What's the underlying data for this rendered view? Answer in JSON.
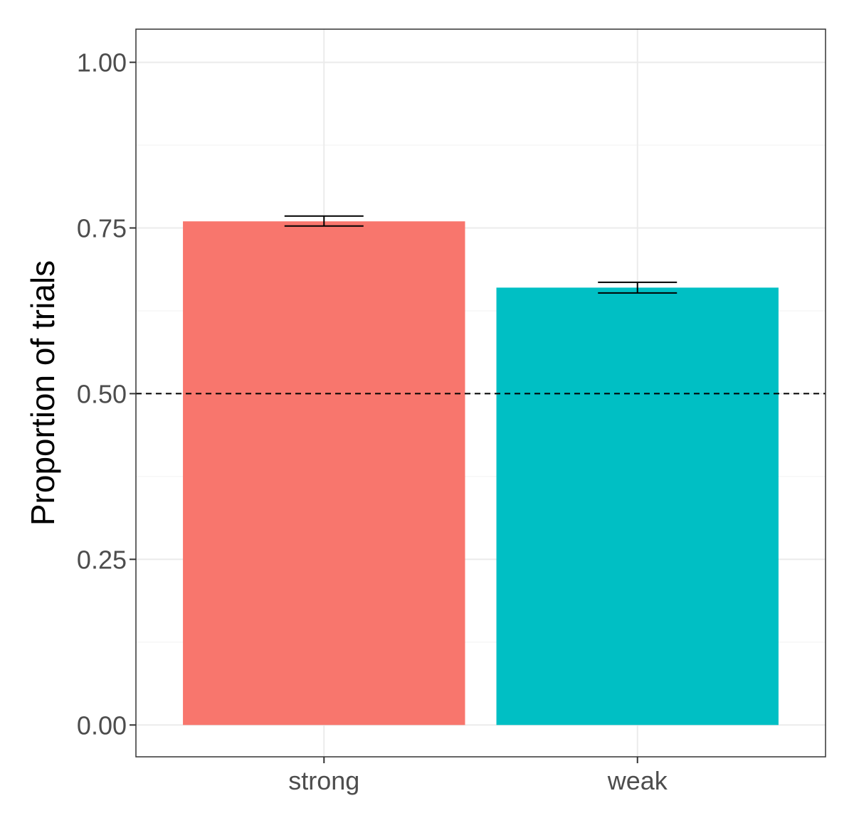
{
  "chart_data": {
    "type": "bar",
    "categories": [
      "strong",
      "weak"
    ],
    "values": [
      0.76,
      0.66
    ],
    "error_bars": [
      {
        "low": 0.753,
        "high": 0.768
      },
      {
        "low": 0.652,
        "high": 0.668
      }
    ],
    "reference_line": {
      "y": 0.5,
      "style": "dashed"
    },
    "ylabel": "Proportion of trials",
    "xlabel": "",
    "ylim": [
      -0.048,
      1.05
    ],
    "yticks": [
      0.0,
      0.25,
      0.5,
      0.75,
      1.0
    ],
    "ytick_labels": [
      "0.00",
      "0.25",
      "0.50",
      "0.75",
      "1.00"
    ],
    "grid": true,
    "legend": "none",
    "colors": [
      "#F8766D",
      "#00BFC4"
    ]
  }
}
